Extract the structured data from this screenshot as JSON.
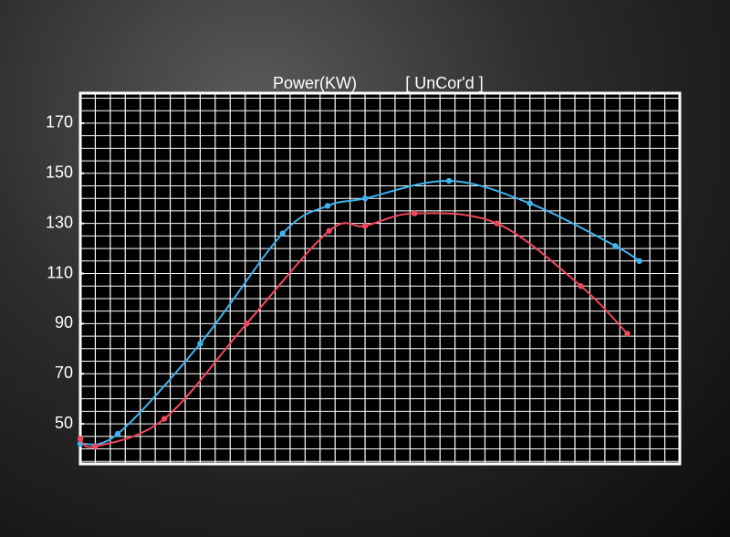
{
  "chart_data": {
    "type": "line",
    "title": "Power(KW)",
    "subtitle": "[ UnCor'd ]",
    "xlim": [
      0,
      40
    ],
    "xticks": [
      0,
      1,
      2,
      3,
      4,
      5,
      6,
      7,
      8,
      9,
      10,
      11,
      12,
      13,
      14,
      15,
      16,
      17,
      18,
      19,
      20,
      21,
      22,
      23,
      24,
      25,
      26,
      27,
      28,
      29,
      30,
      31,
      32,
      33,
      34,
      35,
      36,
      37,
      38,
      39,
      40
    ],
    "ylim": [
      34,
      182
    ],
    "yticks": [
      50,
      70,
      90,
      110,
      130,
      150,
      170
    ],
    "ygrid": [
      35,
      40,
      45,
      50,
      55,
      60,
      65,
      70,
      75,
      80,
      85,
      90,
      95,
      100,
      105,
      110,
      115,
      120,
      125,
      130,
      135,
      140,
      145,
      150,
      155,
      160,
      165,
      170,
      175,
      180
    ],
    "grid": true,
    "series": [
      {
        "color": "#3fb4ee",
        "x": [
          0,
          2.5,
          8,
          13.5,
          16.5,
          19,
          24.6,
          30,
          35.7,
          37.3
        ],
        "values": [
          42,
          46,
          82,
          126,
          137,
          140,
          147,
          138,
          121,
          115
        ]
      },
      {
        "color": "#f2485e",
        "x": [
          0,
          1,
          5.6,
          11.1,
          16.6,
          19,
          22.3,
          27.8,
          33.4,
          36.5
        ],
        "values": [
          44,
          41,
          52,
          90,
          127,
          129,
          134,
          130,
          105,
          86
        ]
      }
    ]
  }
}
